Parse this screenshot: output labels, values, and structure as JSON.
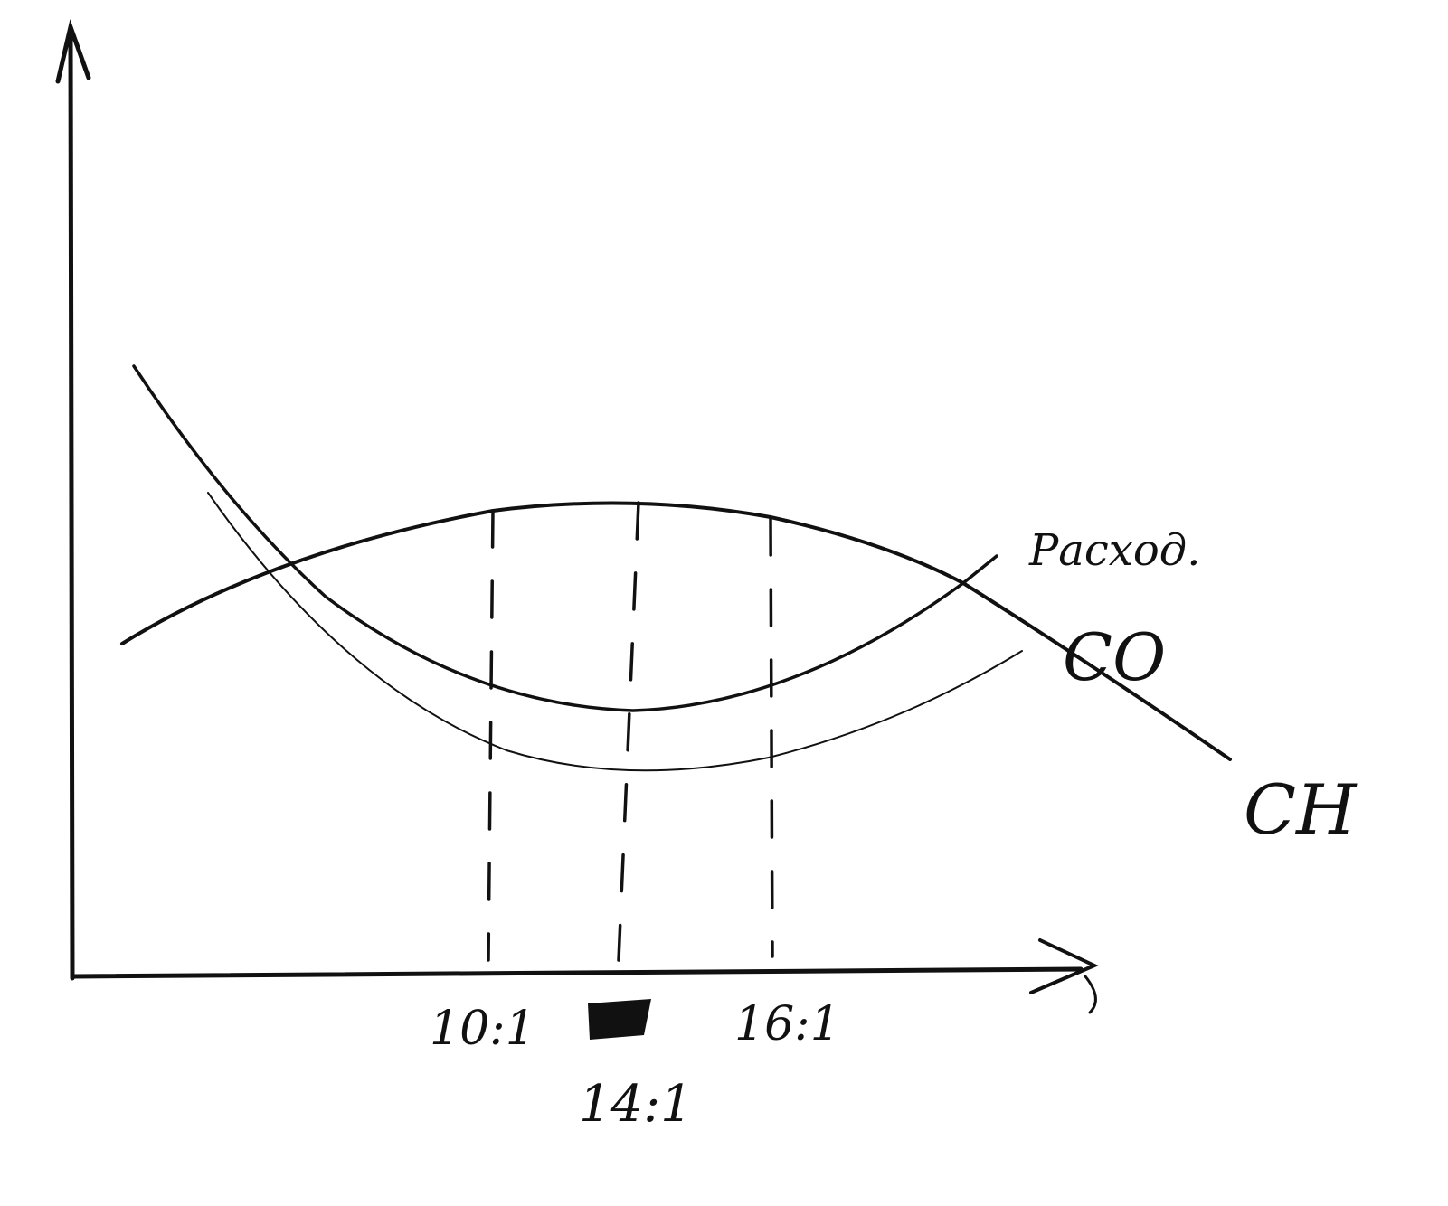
{
  "labels": {
    "consumption": "Расход.",
    "co": "CO",
    "ch": "CH"
  },
  "x_ticks": [
    "10:1",
    "14:1",
    "16:1"
  ],
  "colors": {
    "ink": "#111111",
    "paper": "#ffffff"
  }
}
